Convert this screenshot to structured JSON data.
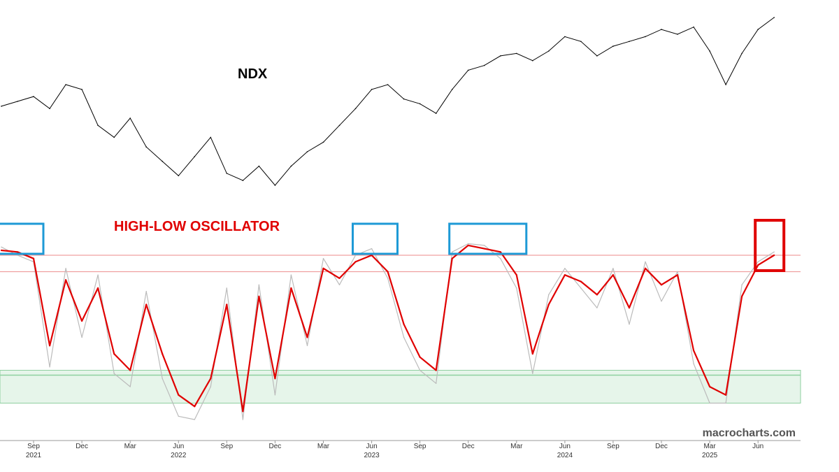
{
  "chart_data": [
    {
      "type": "line",
      "title": "NDX",
      "series": [
        {
          "name": "NDX",
          "color": "#000000",
          "x": [
            "2021-07",
            "2021-08",
            "2021-09",
            "2021-10",
            "2021-11",
            "2021-12",
            "2022-01",
            "2022-02",
            "2022-03",
            "2022-04",
            "2022-05",
            "2022-06",
            "2022-07",
            "2022-08",
            "2022-09",
            "2022-10",
            "2022-11",
            "2022-12",
            "2023-01",
            "2023-02",
            "2023-03",
            "2023-04",
            "2023-05",
            "2023-06",
            "2023-07",
            "2023-08",
            "2023-09",
            "2023-10",
            "2023-11",
            "2023-12",
            "2024-01",
            "2024-02",
            "2024-03",
            "2024-04",
            "2024-05",
            "2024-06",
            "2024-07",
            "2024-08",
            "2024-09",
            "2024-10",
            "2024-11",
            "2024-12",
            "2025-01",
            "2025-02",
            "2025-03",
            "2025-04",
            "2025-05",
            "2025-06",
            "2025-07"
          ],
          "y": [
            63,
            65,
            67,
            62,
            72,
            70,
            55,
            50,
            58,
            46,
            40,
            34,
            42,
            50,
            35,
            32,
            38,
            30,
            38,
            44,
            48,
            55,
            62,
            70,
            72,
            66,
            64,
            60,
            70,
            78,
            80,
            84,
            85,
            82,
            86,
            92,
            90,
            84,
            88,
            90,
            92,
            95,
            93,
            96,
            86,
            72,
            85,
            95,
            100
          ]
        }
      ]
    },
    {
      "type": "line",
      "title": "HIGH-LOW OSCILLATOR",
      "xlabel": "",
      "ylabel": "",
      "ylim": [
        -10,
        110
      ],
      "reference_lines": [
        90,
        80
      ],
      "reference_band": [
        0,
        20
      ],
      "reference_band_line": 17,
      "series": [
        {
          "name": "",
          "color": "#e00000",
          "x": [
            "2021-07",
            "2021-08",
            "2021-09",
            "2021-10",
            "2021-11",
            "2021-12",
            "2022-01",
            "2022-02",
            "2022-03",
            "2022-04",
            "2022-05",
            "2022-06",
            "2022-07",
            "2022-08",
            "2022-09",
            "2022-10",
            "2022-11",
            "2022-12",
            "2023-01",
            "2023-02",
            "2023-03",
            "2023-04",
            "2023-05",
            "2023-06",
            "2023-07",
            "2023-08",
            "2023-09",
            "2023-10",
            "2023-11",
            "2023-12",
            "2024-01",
            "2024-02",
            "2024-03",
            "2024-04",
            "2024-05",
            "2024-06",
            "2024-07",
            "2024-08",
            "2024-09",
            "2024-10",
            "2024-11",
            "2024-12",
            "2025-01",
            "2025-02",
            "2025-03",
            "2025-04",
            "2025-05",
            "2025-06",
            "2025-07"
          ],
          "y": [
            93,
            92,
            88,
            35,
            75,
            50,
            70,
            30,
            20,
            60,
            30,
            5,
            -2,
            15,
            60,
            -5,
            65,
            15,
            70,
            40,
            82,
            76,
            86,
            90,
            80,
            48,
            28,
            20,
            88,
            96,
            94,
            92,
            78,
            30,
            60,
            78,
            74,
            66,
            78,
            58,
            82,
            72,
            78,
            32,
            10,
            5,
            65,
            84,
            90
          ]
        },
        {
          "name": "",
          "color": "#bbbbbb",
          "x": [
            "2021-07",
            "2021-08",
            "2021-09",
            "2021-10",
            "2021-11",
            "2021-12",
            "2022-01",
            "2022-02",
            "2022-03",
            "2022-04",
            "2022-05",
            "2022-06",
            "2022-07",
            "2022-08",
            "2022-09",
            "2022-10",
            "2022-11",
            "2022-12",
            "2023-01",
            "2023-02",
            "2023-03",
            "2023-04",
            "2023-05",
            "2023-06",
            "2023-07",
            "2023-08",
            "2023-09",
            "2023-10",
            "2023-11",
            "2023-12",
            "2024-01",
            "2024-02",
            "2024-03",
            "2024-04",
            "2024-05",
            "2024-06",
            "2024-07",
            "2024-08",
            "2024-09",
            "2024-10",
            "2024-11",
            "2024-12",
            "2025-01",
            "2025-02",
            "2025-03",
            "2025-04",
            "2025-05",
            "2025-06",
            "2025-07"
          ],
          "y": [
            95,
            90,
            86,
            22,
            82,
            40,
            78,
            18,
            10,
            68,
            15,
            -8,
            -10,
            10,
            70,
            -10,
            72,
            5,
            78,
            35,
            88,
            72,
            90,
            94,
            76,
            40,
            20,
            12,
            92,
            97,
            96,
            88,
            70,
            18,
            66,
            82,
            70,
            58,
            82,
            48,
            86,
            62,
            80,
            24,
            0,
            0,
            72,
            86,
            92
          ]
        }
      ],
      "highlight_boxes": [
        {
          "from": "2021-07",
          "to": "2021-09",
          "color": "#1e9ad6"
        },
        {
          "from": "2023-05",
          "to": "2023-07",
          "color": "#1e9ad6"
        },
        {
          "from": "2023-11",
          "to": "2024-03",
          "color": "#1e9ad6"
        },
        {
          "from": "2025-06",
          "to": "2025-07",
          "color": "#e00000"
        }
      ]
    }
  ],
  "x_axis": {
    "month_ticks": [
      {
        "label": "Sep",
        "date": "2021-09"
      },
      {
        "label": "Dec",
        "date": "2021-12"
      },
      {
        "label": "Mar",
        "date": "2022-03"
      },
      {
        "label": "Jun",
        "date": "2022-06"
      },
      {
        "label": "Sep",
        "date": "2022-09"
      },
      {
        "label": "Dec",
        "date": "2022-12"
      },
      {
        "label": "Mar",
        "date": "2023-03"
      },
      {
        "label": "Jun",
        "date": "2023-06"
      },
      {
        "label": "Sep",
        "date": "2023-09"
      },
      {
        "label": "Dec",
        "date": "2023-12"
      },
      {
        "label": "Mar",
        "date": "2024-03"
      },
      {
        "label": "Jun",
        "date": "2024-06"
      },
      {
        "label": "Sep",
        "date": "2024-09"
      },
      {
        "label": "Dec",
        "date": "2024-12"
      },
      {
        "label": "Mar",
        "date": "2025-03"
      },
      {
        "label": "Jun",
        "date": "2025-06"
      }
    ],
    "year_labels": [
      {
        "label": "2021",
        "date": "2021-09"
      },
      {
        "label": "2022",
        "date": "2022-06"
      },
      {
        "label": "2023",
        "date": "2023-06"
      },
      {
        "label": "2024",
        "date": "2024-06"
      },
      {
        "label": "2025",
        "date": "2025-03"
      }
    ]
  },
  "watermark": "macrocharts.com",
  "colors": {
    "reference_line": "#f0a0a0",
    "band_fill": "#e6f5ea",
    "band_line": "#8fd0a0"
  }
}
